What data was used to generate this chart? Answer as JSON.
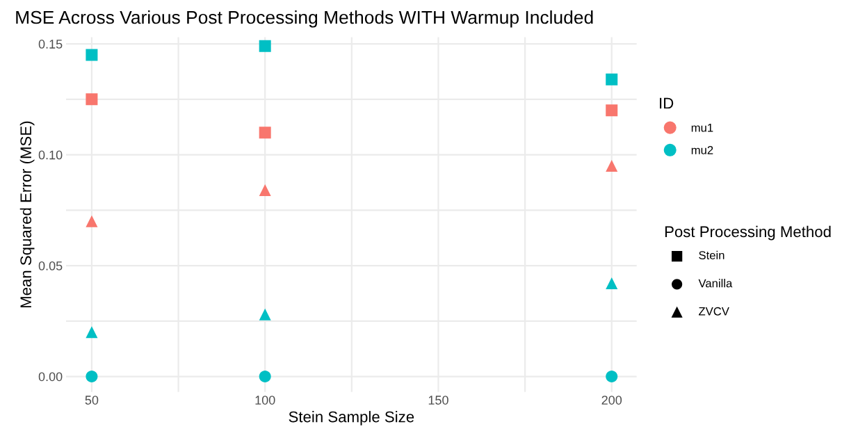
{
  "chart_data": {
    "type": "scatter",
    "title": "MSE Across Various Post Processing Methods WITH Warmup Included",
    "xlabel": "Stein Sample Size",
    "ylabel": "Mean Squared Error (MSE)",
    "legend_title": "ID",
    "annotations": [
      "Post Processing Method",
      "Stein",
      "Vanilla",
      "ZVCV"
    ],
    "x": [
      50,
      100,
      200
    ],
    "series": [
      {
        "marker": "square",
        "color": "#f8766d",
        "values": [
          0.125,
          0.11,
          0.12
        ]
      },
      {
        "name": "mu1",
        "marker": "circle",
        "color": "#f8766d",
        "values": [
          null,
          null,
          null
        ]
      },
      {
        "marker": "triangle",
        "color": "#f8766d",
        "values": [
          0.07,
          0.084,
          0.095
        ]
      },
      {
        "marker": "square",
        "color": "#00bfc4",
        "values": [
          0.145,
          0.149,
          0.134
        ]
      },
      {
        "name": "mu2",
        "marker": "circle",
        "color": "#00bfc4",
        "values": [
          0.0,
          0.0,
          0.0
        ]
      },
      {
        "marker": "triangle",
        "color": "#00bfc4",
        "values": [
          0.02,
          0.028,
          0.042
        ]
      }
    ],
    "xlim": [
      42.6,
      207.2
    ],
    "ylim": [
      -0.007,
      0.153
    ],
    "xticks": [
      50,
      {
        "value": 75,
        "label": null
      },
      100,
      {
        "value": 125,
        "label": null
      },
      150,
      {
        "value": 175,
        "label": null
      },
      200
    ],
    "yticks": [
      {
        "value": 0,
        "label": "0.00"
      },
      {
        "value": 0.025,
        "label": null
      },
      {
        "value": 0.05,
        "label": "0.05"
      },
      {
        "value": 0.075,
        "label": null
      },
      {
        "value": 0.1,
        "label": "0.10"
      },
      {
        "value": 0.125,
        "label": null
      },
      {
        "value": 0.15,
        "label": "0.15"
      }
    ],
    "grid": true,
    "legend": "right"
  }
}
